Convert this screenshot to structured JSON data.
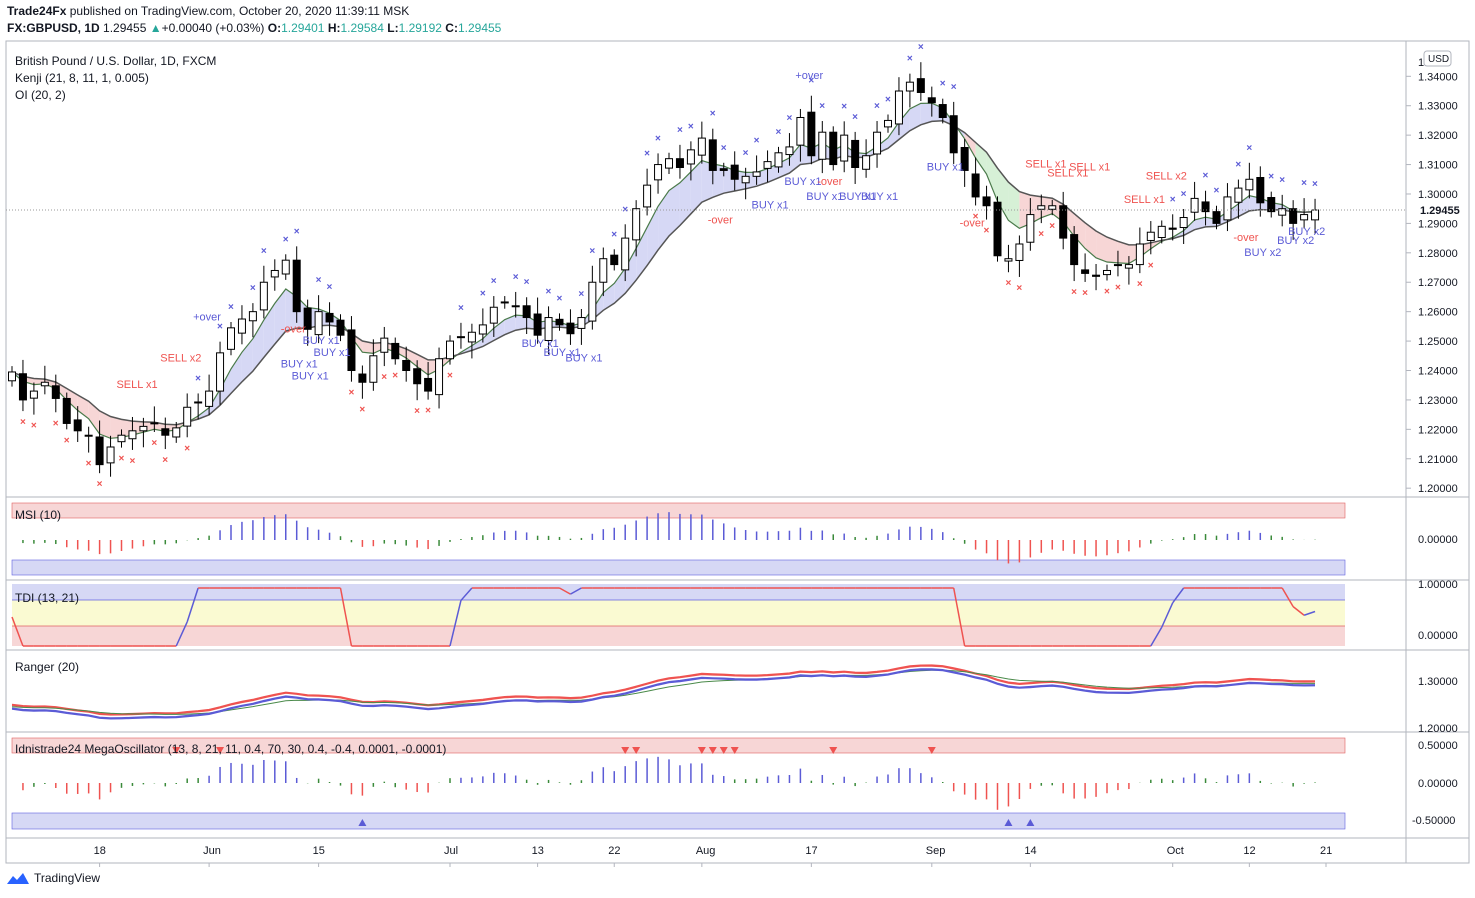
{
  "header": {
    "publisher": "Trade24Fx",
    "published_text": "published on TradingView.com, October 20, 2020 11:39:11 MSK",
    "symbol": "FX:GBPUSD, 1D",
    "last": "1.29455",
    "change": "+0.00040 (+0.03%)",
    "o_label": "O:",
    "o": "1.29401",
    "h_label": "H:",
    "h": "1.29584",
    "l_label": "L:",
    "l": "1.29192",
    "c_label": "C:",
    "c": "1.29455"
  },
  "main_pane": {
    "title": "British Pound / U.S. Dollar, 1D, FXCM",
    "indicator1": "Kenji (21, 8, 11, 1, 0.005)",
    "indicator2": "OI (20, 2)",
    "currency": "USD",
    "price_ticks": [
      "1.34000",
      "1.33000",
      "1.32000",
      "1.31000",
      "1.30000",
      "1.29000",
      "1.28000",
      "1.27000",
      "1.26000",
      "1.25000",
      "1.24000",
      "1.23000",
      "1.22000",
      "1.21000",
      "1.20000"
    ],
    "tick_values": [
      1.34,
      1.33,
      1.32,
      1.31,
      1.3,
      1.29,
      1.28,
      1.27,
      1.26,
      1.25,
      1.24,
      1.23,
      1.22,
      1.21,
      1.2
    ],
    "top_tick": "1.",
    "last_price_label": "1.29455",
    "last_price": 1.29455,
    "y_min": 1.197,
    "y_max": 1.352
  },
  "signals": [
    {
      "text": "SELL x1",
      "i": 11,
      "price": 1.234,
      "type": "sell"
    },
    {
      "text": "SELL x2",
      "i": 15,
      "price": 1.243,
      "type": "sell"
    },
    {
      "text": "+over",
      "i": 18,
      "price": 1.257,
      "type": "buy"
    },
    {
      "text": "-over",
      "i": 26,
      "price": 1.253,
      "type": "sell"
    },
    {
      "text": "BUY x1",
      "i": 26,
      "price": 1.241,
      "type": "buy"
    },
    {
      "text": "BUY x1",
      "i": 27,
      "price": 1.237,
      "type": "buy"
    },
    {
      "text": "BUY x1",
      "i": 28,
      "price": 1.249,
      "type": "buy"
    },
    {
      "text": "BUY x1",
      "i": 29,
      "price": 1.245,
      "type": "buy"
    },
    {
      "text": "BUY x1",
      "i": 48,
      "price": 1.248,
      "type": "buy"
    },
    {
      "text": "BUY x1",
      "i": 50,
      "price": 1.245,
      "type": "buy"
    },
    {
      "text": "BUY x1",
      "i": 52,
      "price": 1.243,
      "type": "buy"
    },
    {
      "text": "-over",
      "i": 65,
      "price": 1.29,
      "type": "sell"
    },
    {
      "text": "BUY x1",
      "i": 69,
      "price": 1.295,
      "type": "buy"
    },
    {
      "text": "+over",
      "i": 73,
      "price": 1.339,
      "type": "buy"
    },
    {
      "text": "BUY x1",
      "i": 72,
      "price": 1.303,
      "type": "buy"
    },
    {
      "text": "BUY x1",
      "i": 74,
      "price": 1.298,
      "type": "buy"
    },
    {
      "text": "-over",
      "i": 75,
      "price": 1.303,
      "type": "sell"
    },
    {
      "text": "BUY x1",
      "i": 77,
      "price": 1.298,
      "type": "buy"
    },
    {
      "text": "BUY x1",
      "i": 79,
      "price": 1.298,
      "type": "buy"
    },
    {
      "text": "BUY x1",
      "i": 85,
      "price": 1.308,
      "type": "buy"
    },
    {
      "text": "-over",
      "i": 88,
      "price": 1.289,
      "type": "sell"
    },
    {
      "text": "SELL x1",
      "i": 94,
      "price": 1.309,
      "type": "sell"
    },
    {
      "text": "SELL x1",
      "i": 96,
      "price": 1.306,
      "type": "sell"
    },
    {
      "text": "SELL x1",
      "i": 98,
      "price": 1.308,
      "type": "sell"
    },
    {
      "text": "SELL x1",
      "i": 103,
      "price": 1.297,
      "type": "sell"
    },
    {
      "text": "SELL x2",
      "i": 105,
      "price": 1.305,
      "type": "sell"
    },
    {
      "text": "-over",
      "i": 113,
      "price": 1.284,
      "type": "sell"
    },
    {
      "text": "BUY x2",
      "i": 114,
      "price": 1.279,
      "type": "buy"
    },
    {
      "text": "BUY x2",
      "i": 117,
      "price": 1.283,
      "type": "buy"
    },
    {
      "text": "BUY x2",
      "i": 118,
      "price": 1.286,
      "type": "buy"
    }
  ],
  "x_axis": [
    {
      "label": "18",
      "i": 8
    },
    {
      "label": "Jun",
      "i": 18
    },
    {
      "label": "15",
      "i": 28
    },
    {
      "label": "Jul",
      "i": 40
    },
    {
      "label": "13",
      "i": 48
    },
    {
      "label": "22",
      "i": 55
    },
    {
      "label": "Aug",
      "i": 63
    },
    {
      "label": "17",
      "i": 73
    },
    {
      "label": "Sep",
      "i": 84
    },
    {
      "label": "14",
      "i": 93
    },
    {
      "label": "Oct",
      "i": 106
    },
    {
      "label": "12",
      "i": 113
    },
    {
      "label": "21",
      "i": 120
    }
  ],
  "msi_pane": {
    "title": "MSI (10)",
    "tick": "0.00000"
  },
  "tdi_pane": {
    "title": "TDI (13, 21)",
    "ticks": [
      "1.00000",
      "0.00000"
    ]
  },
  "ranger_pane": {
    "title": "Ranger (20)",
    "ticks": [
      "1.30000",
      "1.20000"
    ]
  },
  "mega_pane": {
    "title": "Idnistrade24 MegaOscillator (13, 8, 21, 11, 0.4, 70, 30, 0.4, -0.4, 0.0001, -0.0001)",
    "ticks": [
      "0.50000",
      "0.00000",
      "-0.50000"
    ]
  },
  "footer": {
    "brand": "TradingView"
  },
  "colors": {
    "up": "#ffffff",
    "down": "#000000",
    "buy": "#5b5bd6",
    "sell": "#ef5350",
    "ma": "#555555",
    "fill_up": "#d6d8f5",
    "fill_down": "#f7d6d6",
    "fill_green": "#d6f0d6"
  },
  "chart_data": {
    "type": "candlestick",
    "title": "British Pound / U.S. Dollar, 1D, FXCM",
    "x_labels": [
      "18",
      "Jun",
      "15",
      "Jul",
      "13",
      "22",
      "Aug",
      "17",
      "Sep",
      "14",
      "Oct",
      "12",
      "21"
    ],
    "close": [
      1.2395,
      1.23,
      1.233,
      1.236,
      1.2305,
      1.222,
      1.2195,
      1.218,
      1.208,
      1.214,
      1.218,
      1.2195,
      1.221,
      1.222,
      1.218,
      1.2205,
      1.2275,
      1.229,
      1.233,
      1.246,
      1.2545,
      1.2575,
      1.26,
      1.27,
      1.274,
      1.2775,
      1.26,
      1.254,
      1.26,
      1.2565,
      1.252,
      1.24,
      1.236,
      1.245,
      1.251,
      1.244,
      1.24,
      1.2355,
      1.233,
      1.244,
      1.25,
      1.2515,
      1.253,
      1.2555,
      1.2615,
      1.263,
      1.262,
      1.258,
      1.252,
      1.258,
      1.2555,
      1.2525,
      1.258,
      1.27,
      1.278,
      1.276,
      1.285,
      1.295,
      1.303,
      1.31,
      1.312,
      1.309,
      1.315,
      1.319,
      1.308,
      1.308,
      1.305,
      1.306,
      1.3075,
      1.311,
      1.314,
      1.316,
      1.326,
      1.313,
      1.321,
      1.31,
      1.32,
      1.309,
      1.313,
      1.321,
      1.325,
      1.335,
      1.338,
      1.3345,
      1.331,
      1.326,
      1.314,
      1.308,
      1.299,
      1.296,
      1.279,
      1.278,
      1.283,
      1.293,
      1.296,
      1.296,
      1.285,
      1.276,
      1.273,
      1.272,
      1.274,
      1.276,
      1.276,
      1.283,
      1.287,
      1.289,
      1.288,
      1.292,
      1.2985,
      1.294,
      1.29,
      1.299,
      1.302,
      1.305,
      1.297,
      1.294,
      1.295,
      1.29,
      1.293,
      1.29455
    ],
    "open_offsets": "derived",
    "oi_line1": "computed",
    "oi_line2": "computed"
  }
}
